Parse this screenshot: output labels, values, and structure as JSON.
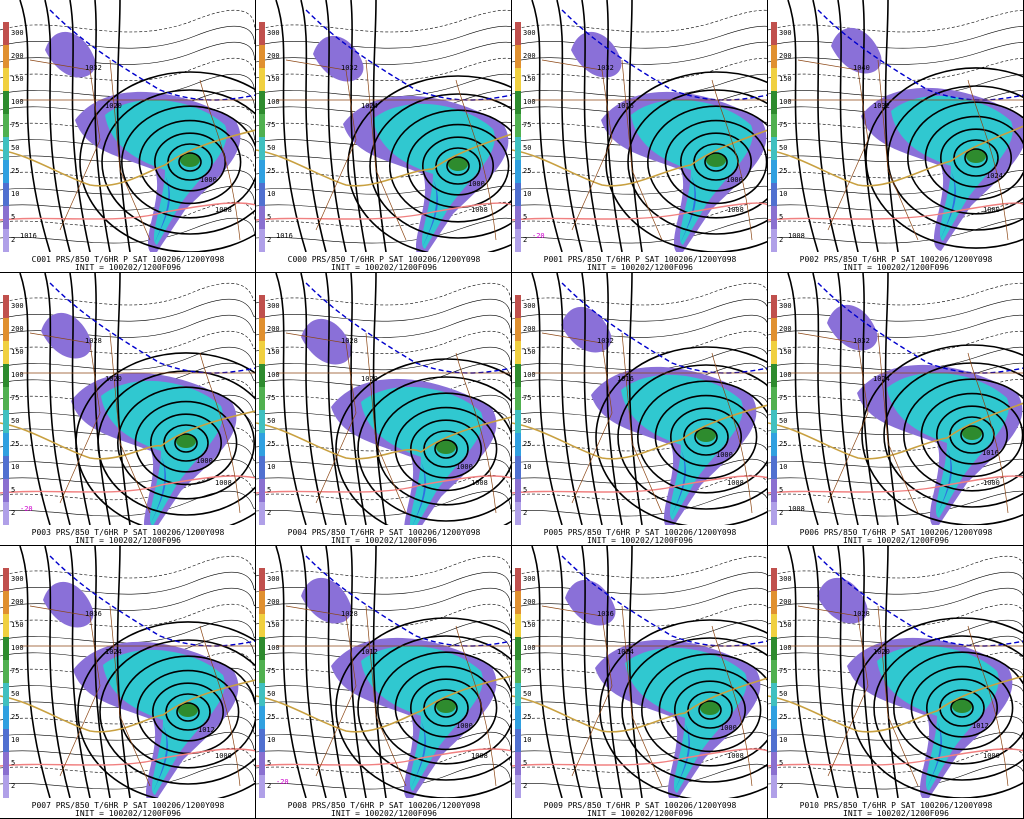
{
  "colorbar": {
    "labels": [
      "300",
      "200",
      "150",
      "100",
      "75",
      "50",
      "25",
      "10",
      "5",
      "2"
    ],
    "colors": [
      "#c0504d",
      "#e09030",
      "#f0d040",
      "#2e8b2e",
      "#50b050",
      "#40c0c0",
      "#30a0e0",
      "#5070d0",
      "#8a70d0",
      "#b0a0e8"
    ]
  },
  "colors": {
    "precip_light": "#8a70d8",
    "precip_mid": "#30c8d0",
    "precip_heavy": "#3070e0",
    "precip_core": "#2e8b2e",
    "isobar": "#000000",
    "thickness": "#000000",
    "freezing_line": "#c8a040",
    "warm_line": "#f08080",
    "cold_line": "#0000cc",
    "minus20_line": "#cc00cc",
    "borders": "#8b4513"
  },
  "panels": [
    {
      "id": "c001",
      "line1": "C001 PRS/850 T/6HR P SAT 100206/1200Y098",
      "line2": "INIT = 100202/1200F096",
      "labels": [
        "1032",
        "1020",
        "1000",
        "1008",
        "1016"
      ]
    },
    {
      "id": "c000",
      "line1": "C000 PRS/850 T/6HR P SAT 100206/1200Y098",
      "line2": "INIT = 100202/1200F096",
      "labels": [
        "1032",
        "1024",
        "1000",
        "1008",
        "1016"
      ]
    },
    {
      "id": "p001",
      "line1": "P001 PRS/850 T/6HR P SAT 100206/1200Y098",
      "line2": "INIT = 100202/1200F096",
      "labels": [
        "1032",
        "1016",
        "1000",
        "1008",
        "-20"
      ]
    },
    {
      "id": "p002",
      "line1": "P002 PRS/850 T/6HR P SAT 100206/1200Y098",
      "line2": "INIT = 100202/1200F096",
      "labels": [
        "1040",
        "1032",
        "1024",
        "1000",
        "1008"
      ]
    },
    {
      "id": "p003",
      "line1": "P003 PRS/850 T/6HR P SAT 100206/1200Y098",
      "line2": "INIT = 100202/1200F096",
      "labels": [
        "1028",
        "1020",
        "1000",
        "1008",
        "-20"
      ]
    },
    {
      "id": "p004",
      "line1": "P004 PRS/850 T/6HR P SAT 100206/1200Y098",
      "line2": "INIT = 100202/1200F096",
      "labels": [
        "1028",
        "1020",
        "1000",
        "1008"
      ]
    },
    {
      "id": "p005",
      "line1": "P005 PRS/850 T/6HR P SAT 100206/1200Y098",
      "line2": "INIT = 100202/1200F096",
      "labels": [
        "1032",
        "1016",
        "1000",
        "1008"
      ]
    },
    {
      "id": "p006",
      "line1": "P006 PRS/850 T/6HR P SAT 100206/1200Y098",
      "line2": "INIT = 100202/1200F096",
      "labels": [
        "1032",
        "1024",
        "1016",
        "1000",
        "1008"
      ]
    },
    {
      "id": "p007",
      "line1": "P007 PRS/850 T/6HR P SAT 100206/1200Y098",
      "line2": "INIT = 100202/1200F096",
      "labels": [
        "1036",
        "1024",
        "1012",
        "1000"
      ]
    },
    {
      "id": "p008",
      "line1": "P008 PRS/850 T/6HR P SAT 100206/1200Y098",
      "line2": "INIT = 100202/1200F096",
      "labels": [
        "1028",
        "1012",
        "1000",
        "1008",
        "-20"
      ]
    },
    {
      "id": "p009",
      "line1": "P009 PRS/850 T/6HR P SAT 100206/1200Y098",
      "line2": "INIT = 100202/1200F096",
      "labels": [
        "1036",
        "1024",
        "1000",
        "1008"
      ]
    },
    {
      "id": "p010",
      "line1": "P010 PRS/850 T/6HR P SAT 100206/1200Y098",
      "line2": "INIT = 100202/1200F096",
      "labels": [
        "1028",
        "1020",
        "1012",
        "1000"
      ]
    }
  ]
}
